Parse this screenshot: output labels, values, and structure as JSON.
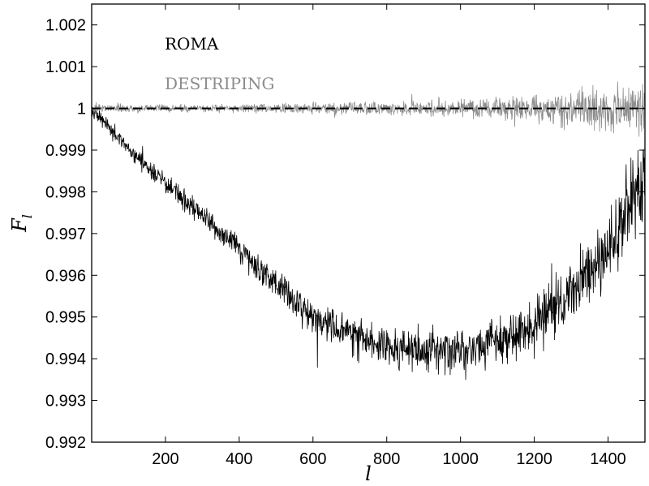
{
  "chart_data": {
    "type": "line",
    "title": "",
    "xlabel": "l",
    "ylabel": "F",
    "ylabel_subscript": "l",
    "xlim": [
      0,
      1500
    ],
    "ylim": [
      0.992,
      1.0025
    ],
    "x_ticks": [
      200,
      400,
      600,
      800,
      1000,
      1200,
      1400
    ],
    "y_ticks": [
      0.992,
      0.993,
      0.994,
      0.995,
      0.996,
      0.997,
      0.998,
      0.999,
      1,
      1.001,
      1.002
    ],
    "y_tick_labels": [
      "0.992",
      "0.993",
      "0.994",
      "0.995",
      "0.996",
      "0.997",
      "0.998",
      "0.999",
      "1",
      "1.001",
      "1.002"
    ],
    "grid": false,
    "legend_position": "top-left",
    "reference_line": {
      "y": 1,
      "style": "dashed",
      "color": "#000000"
    },
    "series": [
      {
        "name": "ROMA",
        "color": "#000000",
        "trend": {
          "x": [
            0,
            100,
            200,
            300,
            400,
            500,
            600,
            700,
            800,
            900,
            1000,
            1100,
            1200,
            1300,
            1400,
            1450,
            1500
          ],
          "y": [
            1.0,
            0.999,
            0.9982,
            0.9974,
            0.9966,
            0.9958,
            0.995,
            0.9946,
            0.9943,
            0.9942,
            0.9942,
            0.9944,
            0.9948,
            0.9956,
            0.9966,
            0.9975,
            0.9982
          ]
        },
        "noise": {
          "x": [
            0,
            200,
            400,
            600,
            800,
            1000,
            1200,
            1400,
            1500
          ],
          "amplitude": [
            0.0001,
            0.00015,
            0.0002,
            0.00025,
            0.0003,
            0.00033,
            0.00038,
            0.0005,
            0.0006
          ]
        }
      },
      {
        "name": "DESTRIPING",
        "color": "#8c8c8c",
        "trend": {
          "x": [
            0,
            1500
          ],
          "y": [
            1.0,
            1.0
          ]
        },
        "noise": {
          "x": [
            0,
            200,
            400,
            600,
            800,
            1000,
            1200,
            1400,
            1500
          ],
          "amplitude": [
            8e-05,
            5e-05,
            6e-05,
            8e-05,
            0.0001,
            0.00013,
            0.0002,
            0.0003,
            0.00035
          ]
        }
      }
    ]
  }
}
